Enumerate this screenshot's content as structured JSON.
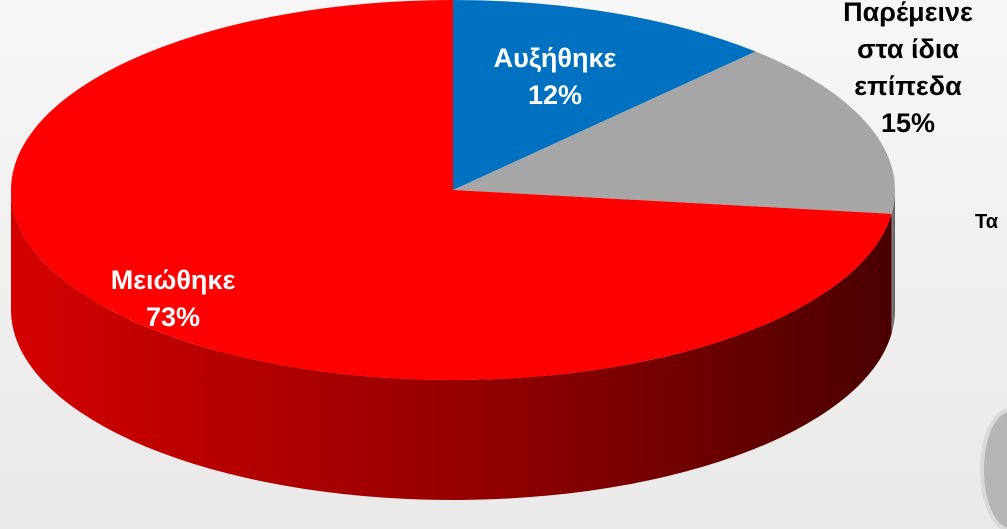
{
  "chart_data": {
    "type": "pie",
    "categories": [
      "Αυξήθηκε",
      "Παρέμεινε στα ίδια επίπεδα",
      "Μειώθηκε"
    ],
    "values": [
      12,
      15,
      73
    ],
    "value_labels": [
      "12%",
      "15%",
      "73%"
    ],
    "colors": [
      "#0070c0",
      "#a6a6a6",
      "#ff0000"
    ],
    "annotation": "Τα"
  }
}
